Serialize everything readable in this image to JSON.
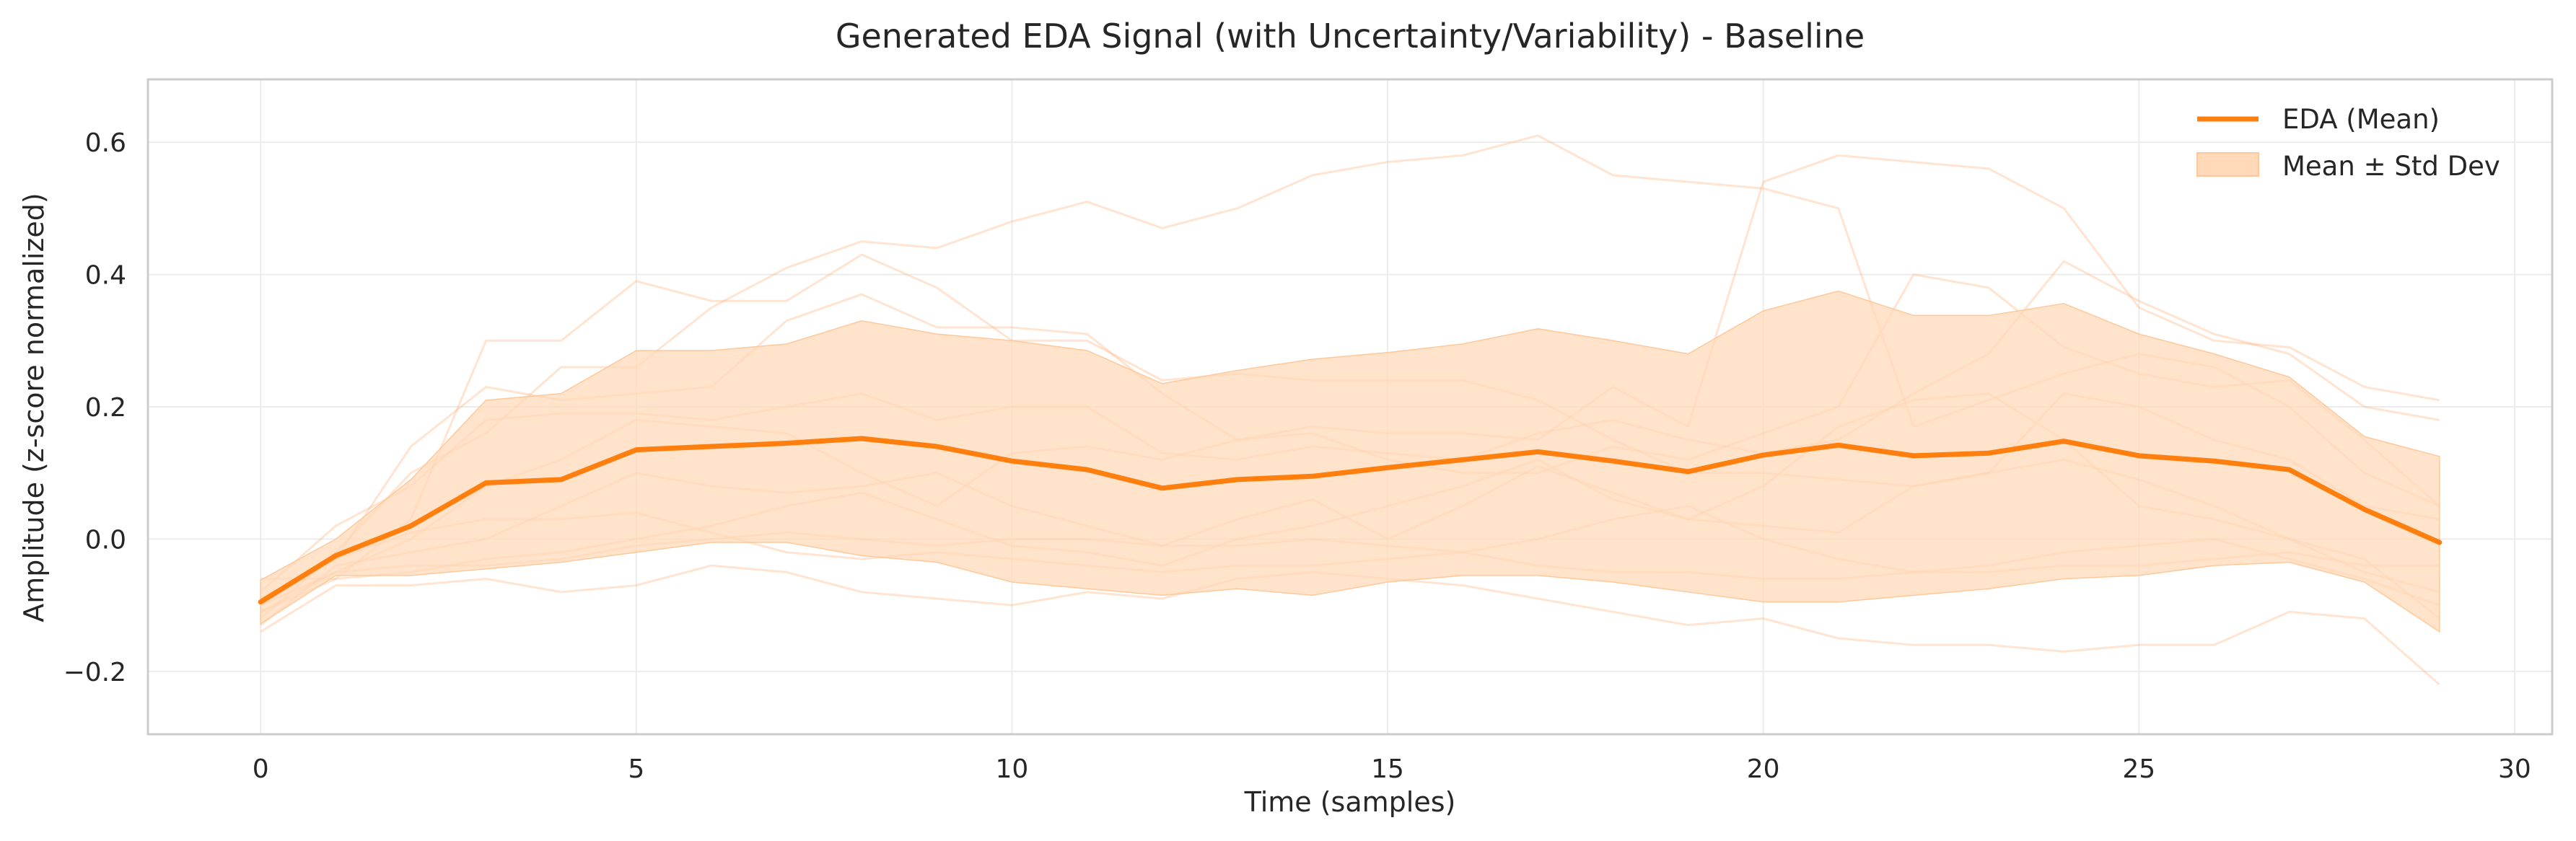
{
  "chart_data": {
    "type": "line",
    "title": "Generated EDA Signal (with Uncertainty/Variability) - Baseline",
    "xlabel": "Time (samples)",
    "ylabel": "Amplitude (z-score normalized)",
    "xlim": [
      -1.5,
      30.5
    ],
    "ylim": [
      -0.295,
      0.695
    ],
    "x_ticks": [
      0,
      5,
      10,
      15,
      20,
      25,
      30
    ],
    "y_ticks": [
      -0.2,
      0.0,
      0.2,
      0.4,
      0.6
    ],
    "y_tick_labels": [
      "−0.2",
      "0.0",
      "0.2",
      "0.4",
      "0.6"
    ],
    "grid": true,
    "legend_position": "top-right",
    "colors": {
      "mean": "#ff7f0e",
      "band": "#ffd9b8",
      "samples": "#ffb27a"
    },
    "x": [
      0,
      1,
      2,
      3,
      4,
      5,
      6,
      7,
      8,
      9,
      10,
      11,
      12,
      13,
      14,
      15,
      16,
      17,
      18,
      19,
      20,
      21,
      22,
      23,
      24,
      25,
      26,
      27,
      28,
      29
    ],
    "series": [
      {
        "name": "EDA (Mean)",
        "role": "mean",
        "values": [
          -0.095,
          -0.025,
          0.02,
          0.085,
          0.09,
          0.135,
          0.14,
          0.145,
          0.152,
          0.14,
          0.118,
          0.105,
          0.077,
          0.09,
          0.095,
          0.108,
          0.12,
          0.132,
          0.118,
          0.102,
          0.127,
          0.142,
          0.126,
          0.13,
          0.148,
          0.126,
          0.118,
          0.105,
          0.045,
          -0.005
        ]
      },
      {
        "name": "Mean ± Std Dev",
        "role": "band",
        "upper": [
          -0.062,
          0.0,
          0.09,
          0.21,
          0.22,
          0.285,
          0.285,
          0.295,
          0.33,
          0.31,
          0.3,
          0.285,
          0.235,
          0.255,
          0.272,
          0.282,
          0.295,
          0.318,
          0.3,
          0.28,
          0.345,
          0.375,
          0.338,
          0.338,
          0.356,
          0.31,
          0.28,
          0.245,
          0.155,
          0.125
        ],
        "lower": [
          -0.128,
          -0.055,
          -0.055,
          -0.045,
          -0.035,
          -0.02,
          -0.005,
          -0.005,
          -0.025,
          -0.035,
          -0.065,
          -0.075,
          -0.085,
          -0.075,
          -0.085,
          -0.065,
          -0.055,
          -0.055,
          -0.065,
          -0.08,
          -0.095,
          -0.095,
          -0.085,
          -0.075,
          -0.06,
          -0.055,
          -0.04,
          -0.035,
          -0.065,
          -0.14
        ]
      },
      {
        "role": "sample",
        "values": [
          -0.11,
          -0.06,
          0.03,
          0.3,
          0.3,
          0.39,
          0.36,
          0.36,
          0.43,
          0.38,
          0.3,
          0.3,
          0.24,
          0.25,
          0.24,
          0.24,
          0.24,
          0.21,
          0.15,
          0.1,
          0.1,
          0.09,
          0.08,
          0.1,
          0.12,
          0.09,
          0.05,
          0.0,
          -0.03,
          -0.12
        ]
      },
      {
        "role": "sample",
        "values": [
          -0.12,
          -0.02,
          0.1,
          0.16,
          0.26,
          0.26,
          0.35,
          0.41,
          0.45,
          0.44,
          0.48,
          0.51,
          0.47,
          0.5,
          0.55,
          0.57,
          0.58,
          0.61,
          0.55,
          0.54,
          0.53,
          0.5,
          0.17,
          0.21,
          0.25,
          0.28,
          0.26,
          0.2,
          0.1,
          0.05
        ]
      },
      {
        "role": "sample",
        "values": [
          -0.09,
          -0.03,
          0.14,
          0.23,
          0.21,
          0.22,
          0.23,
          0.33,
          0.37,
          0.32,
          0.32,
          0.31,
          0.22,
          0.15,
          0.17,
          0.16,
          0.16,
          0.15,
          0.23,
          0.17,
          0.54,
          0.58,
          0.57,
          0.56,
          0.5,
          0.35,
          0.3,
          0.29,
          0.23,
          0.21
        ]
      },
      {
        "role": "sample",
        "values": [
          -0.08,
          0.02,
          0.08,
          0.18,
          0.19,
          0.19,
          0.18,
          0.2,
          0.22,
          0.18,
          0.2,
          0.2,
          0.13,
          0.12,
          0.14,
          0.13,
          0.12,
          0.16,
          0.18,
          0.15,
          0.13,
          0.15,
          0.22,
          0.28,
          0.42,
          0.36,
          0.31,
          0.28,
          0.2,
          0.18
        ]
      },
      {
        "role": "sample",
        "values": [
          -0.1,
          -0.05,
          0.0,
          0.08,
          0.12,
          0.18,
          0.17,
          0.16,
          0.1,
          0.05,
          0.13,
          0.14,
          0.12,
          0.15,
          0.16,
          0.12,
          0.1,
          0.1,
          0.14,
          0.12,
          0.16,
          0.2,
          0.4,
          0.38,
          0.29,
          0.25,
          0.23,
          0.24,
          0.15,
          0.05
        ]
      },
      {
        "role": "sample",
        "values": [
          -0.13,
          -0.04,
          -0.02,
          0.0,
          0.05,
          0.1,
          0.08,
          0.07,
          0.08,
          0.1,
          0.05,
          0.02,
          -0.01,
          0.03,
          0.06,
          0.0,
          0.05,
          0.11,
          0.07,
          0.03,
          0.02,
          0.01,
          0.08,
          0.1,
          0.22,
          0.2,
          0.15,
          0.12,
          0.05,
          0.03
        ]
      },
      {
        "role": "sample",
        "values": [
          -0.06,
          -0.06,
          -0.05,
          -0.03,
          -0.02,
          0.0,
          0.02,
          0.05,
          0.07,
          0.03,
          -0.01,
          -0.02,
          -0.04,
          0.0,
          0.02,
          0.05,
          0.08,
          0.12,
          0.06,
          0.03,
          0.08,
          0.17,
          0.21,
          0.22,
          0.15,
          0.05,
          0.03,
          0.0,
          -0.05,
          -0.08
        ]
      },
      {
        "role": "sample",
        "values": [
          -0.14,
          -0.07,
          -0.07,
          -0.06,
          -0.08,
          -0.07,
          -0.04,
          -0.05,
          -0.08,
          -0.09,
          -0.1,
          -0.08,
          -0.09,
          -0.06,
          -0.05,
          -0.06,
          -0.07,
          -0.09,
          -0.11,
          -0.13,
          -0.12,
          -0.15,
          -0.16,
          -0.16,
          -0.17,
          -0.16,
          -0.16,
          -0.11,
          -0.12,
          -0.22
        ]
      },
      {
        "role": "sample",
        "values": [
          -0.1,
          -0.03,
          0.01,
          0.03,
          0.03,
          0.04,
          0.01,
          -0.02,
          -0.03,
          -0.02,
          -0.03,
          -0.04,
          -0.05,
          -0.04,
          -0.04,
          -0.03,
          -0.02,
          0.0,
          0.03,
          0.05,
          0.0,
          -0.03,
          -0.05,
          -0.04,
          -0.02,
          -0.01,
          0.0,
          -0.03,
          -0.06,
          -0.1
        ]
      },
      {
        "role": "sample",
        "values": [
          -0.11,
          -0.05,
          -0.04,
          -0.04,
          -0.03,
          -0.01,
          0.0,
          0.01,
          0.0,
          -0.01,
          0.0,
          0.0,
          -0.01,
          -0.01,
          0.0,
          -0.01,
          -0.02,
          -0.04,
          -0.05,
          -0.05,
          -0.06,
          -0.06,
          -0.05,
          -0.05,
          -0.04,
          -0.04,
          -0.03,
          -0.02,
          -0.04,
          -0.04
        ]
      }
    ]
  }
}
